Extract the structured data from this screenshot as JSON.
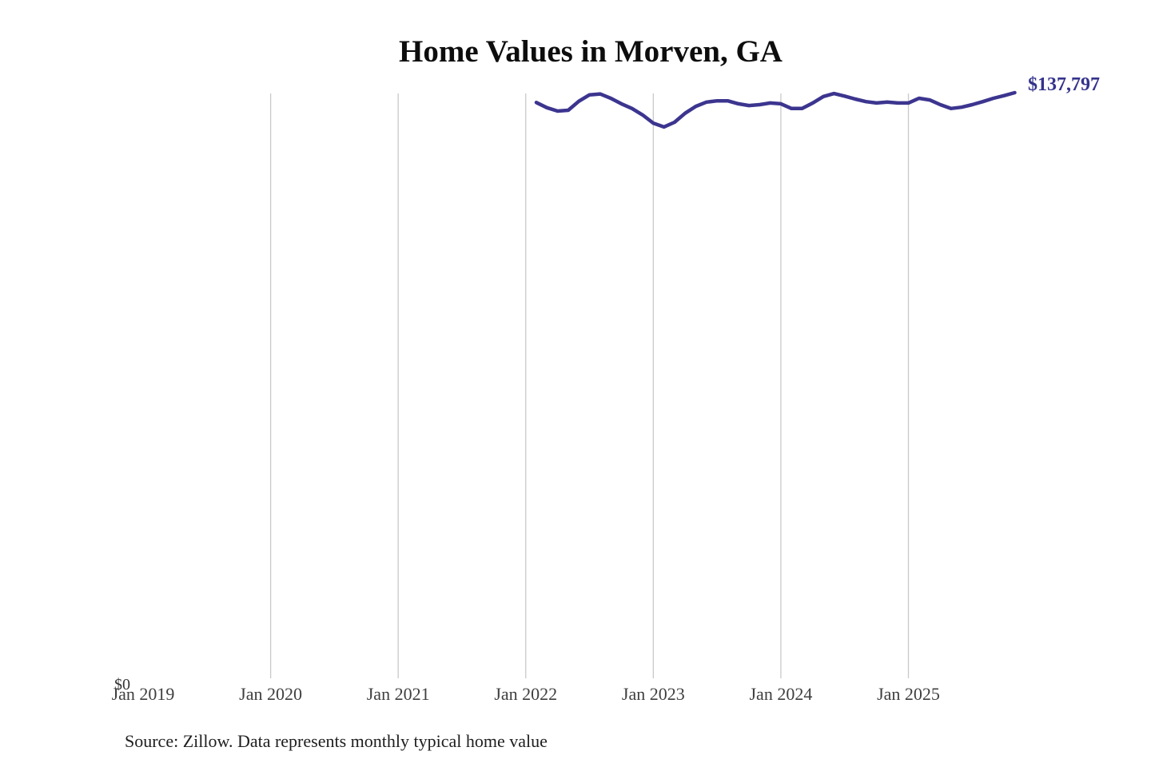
{
  "chart": {
    "title": "Home Values in Morven, GA",
    "end_label": "$137,797",
    "y_zero_label": "$0",
    "source": "Source: Zillow. Data represents monthly typical home value",
    "colors": {
      "line": "#3c358f",
      "end_label": "#35338c",
      "grid": "#c9c9c9",
      "tick_text": "#3f3f3f",
      "title_text": "#0d0d0d",
      "source_text": "#1e1e1e"
    }
  },
  "chart_data": {
    "type": "line",
    "title": "Home Values in Morven, GA",
    "xlabel": "",
    "ylabel": "",
    "ylim": [
      0,
      139000
    ],
    "grid": "vertical-only",
    "legend": "none",
    "latest_value": 137797,
    "latest_value_label": "$137,797",
    "y_ticks_shown": [
      "$0"
    ],
    "x_ticks": [
      {
        "label": "Jan 2019",
        "month": "2019-01",
        "gridline": false
      },
      {
        "label": "Jan 2020",
        "month": "2020-01",
        "gridline": true
      },
      {
        "label": "Jan 2021",
        "month": "2021-01",
        "gridline": true
      },
      {
        "label": "Jan 2022",
        "month": "2022-01",
        "gridline": true
      },
      {
        "label": "Jan 2023",
        "month": "2023-01",
        "gridline": true
      },
      {
        "label": "Jan 2024",
        "month": "2024-01",
        "gridline": true
      },
      {
        "label": "Jan 2025",
        "month": "2025-01",
        "gridline": true
      }
    ],
    "series": [
      {
        "name": "Monthly typical home value",
        "x": [
          "2022-02",
          "2022-03",
          "2022-04",
          "2022-05",
          "2022-06",
          "2022-07",
          "2022-08",
          "2022-09",
          "2022-10",
          "2022-11",
          "2022-12",
          "2023-01",
          "2023-02",
          "2023-03",
          "2023-04",
          "2023-05",
          "2023-06",
          "2023-07",
          "2023-08",
          "2023-09",
          "2023-10",
          "2023-11",
          "2023-12",
          "2024-01",
          "2024-02",
          "2024-03",
          "2024-04",
          "2024-05",
          "2024-06",
          "2024-07",
          "2024-08",
          "2024-09",
          "2024-10",
          "2024-11",
          "2024-12",
          "2025-01",
          "2025-02",
          "2025-03",
          "2025-04",
          "2025-05",
          "2025-06",
          "2025-07",
          "2025-08",
          "2025-09",
          "2025-10",
          "2025-11"
        ],
        "values": [
          135500,
          134300,
          133500,
          133700,
          135800,
          137300,
          137500,
          136500,
          135200,
          134100,
          132600,
          130700,
          129800,
          130900,
          133000,
          134600,
          135600,
          135900,
          135900,
          135200,
          134800,
          135000,
          135400,
          135200,
          134100,
          134100,
          135400,
          136900,
          137600,
          137000,
          136300,
          135700,
          135400,
          135600,
          135400,
          135400,
          136500,
          136100,
          135000,
          134100,
          134400,
          135000,
          135700,
          136500,
          137100,
          137797
        ]
      }
    ]
  }
}
